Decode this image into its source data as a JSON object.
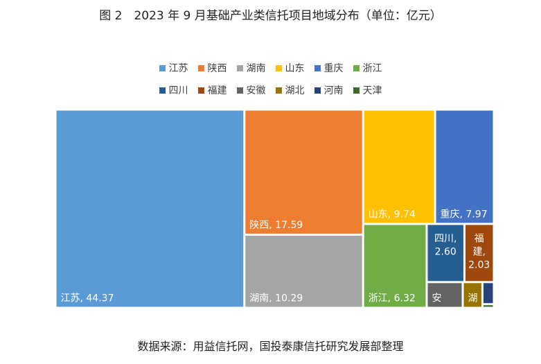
{
  "title": "图 2　2023 年 9 月基础产业类信托项目地域分布（单位：亿元）",
  "source": "数据来源：用益信托网，国投泰康信托研究发展部整理",
  "chart_data": {
    "type": "treemap",
    "series": [
      {
        "name": "江苏",
        "value": 44.37,
        "color": "#5B9BD5",
        "label": "江苏, 44.37"
      },
      {
        "name": "陕西",
        "value": 17.59,
        "color": "#ED7D31",
        "label": "陕西, 17.59"
      },
      {
        "name": "湖南",
        "value": 10.29,
        "color": "#A5A5A5",
        "label": "湖南, 10.29"
      },
      {
        "name": "山东",
        "value": 9.74,
        "color": "#FFC000",
        "label": "山东, 9.74"
      },
      {
        "name": "重庆",
        "value": 7.97,
        "color": "#4472C4",
        "label": "重庆, 7.97"
      },
      {
        "name": "浙江",
        "value": 6.32,
        "color": "#70AD47",
        "label": "浙江, 6.32"
      },
      {
        "name": "四川",
        "value": 2.6,
        "color": "#255E91",
        "label": "四川,\n2.60"
      },
      {
        "name": "福建",
        "value": 2.03,
        "color": "#9E480E",
        "label": "福\n建,\n2.03"
      },
      {
        "name": "安徽",
        "value": 1.1,
        "color": "#636363",
        "label": "安"
      },
      {
        "name": "湖北",
        "value": 0.6,
        "color": "#997300",
        "label": "湖"
      },
      {
        "name": "河南",
        "value": 0.3,
        "color": "#264478",
        "label": ""
      },
      {
        "name": "天津",
        "value": 0.05,
        "color": "#43682B",
        "label": ""
      }
    ]
  }
}
